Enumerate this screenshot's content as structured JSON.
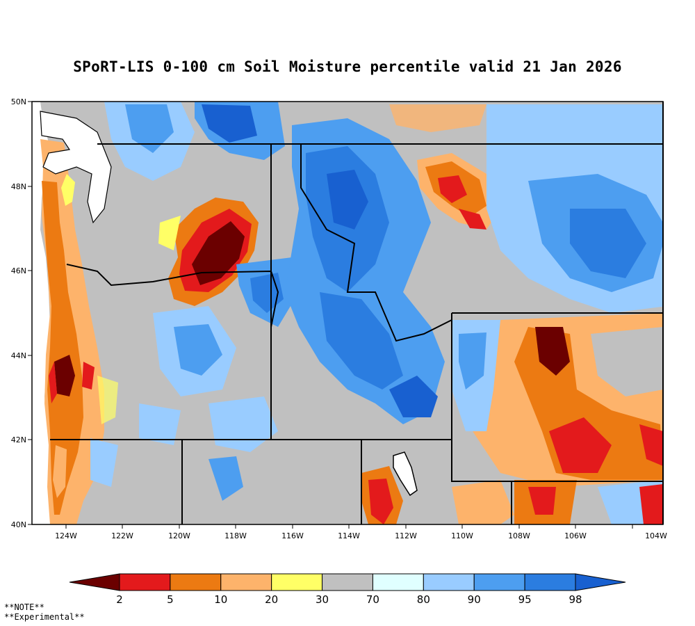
{
  "title": "SPoRT-LIS 0-100 cm Soil Moisture percentile valid 21 Jan 2026",
  "map": {
    "lat_labels": [
      "50N",
      "48N",
      "46N",
      "44N",
      "42N",
      "40N"
    ],
    "lon_labels": [
      "124W",
      "122W",
      "120W",
      "118W",
      "116W",
      "114W",
      "112W",
      "110W",
      "108W",
      "106W",
      "104W"
    ]
  },
  "legend": {
    "bins": [
      {
        "color": "#6b0000"
      },
      {
        "color": "#e31a1c"
      },
      {
        "color": "#ec7a12"
      },
      {
        "color": "#fdb36b"
      },
      {
        "color": "#ffff66"
      },
      {
        "color": "#c0c0c0"
      },
      {
        "color": "#e0ffff"
      },
      {
        "color": "#99ccff"
      },
      {
        "color": "#4d9ef0"
      },
      {
        "color": "#2b7de0"
      },
      {
        "color": "#1860d0"
      }
    ],
    "tick_labels": [
      "2",
      "5",
      "10",
      "20",
      "30",
      "70",
      "80",
      "90",
      "95",
      "98"
    ]
  },
  "notes": {
    "line1": "**NOTE**",
    "line2": "**Experimental**"
  }
}
